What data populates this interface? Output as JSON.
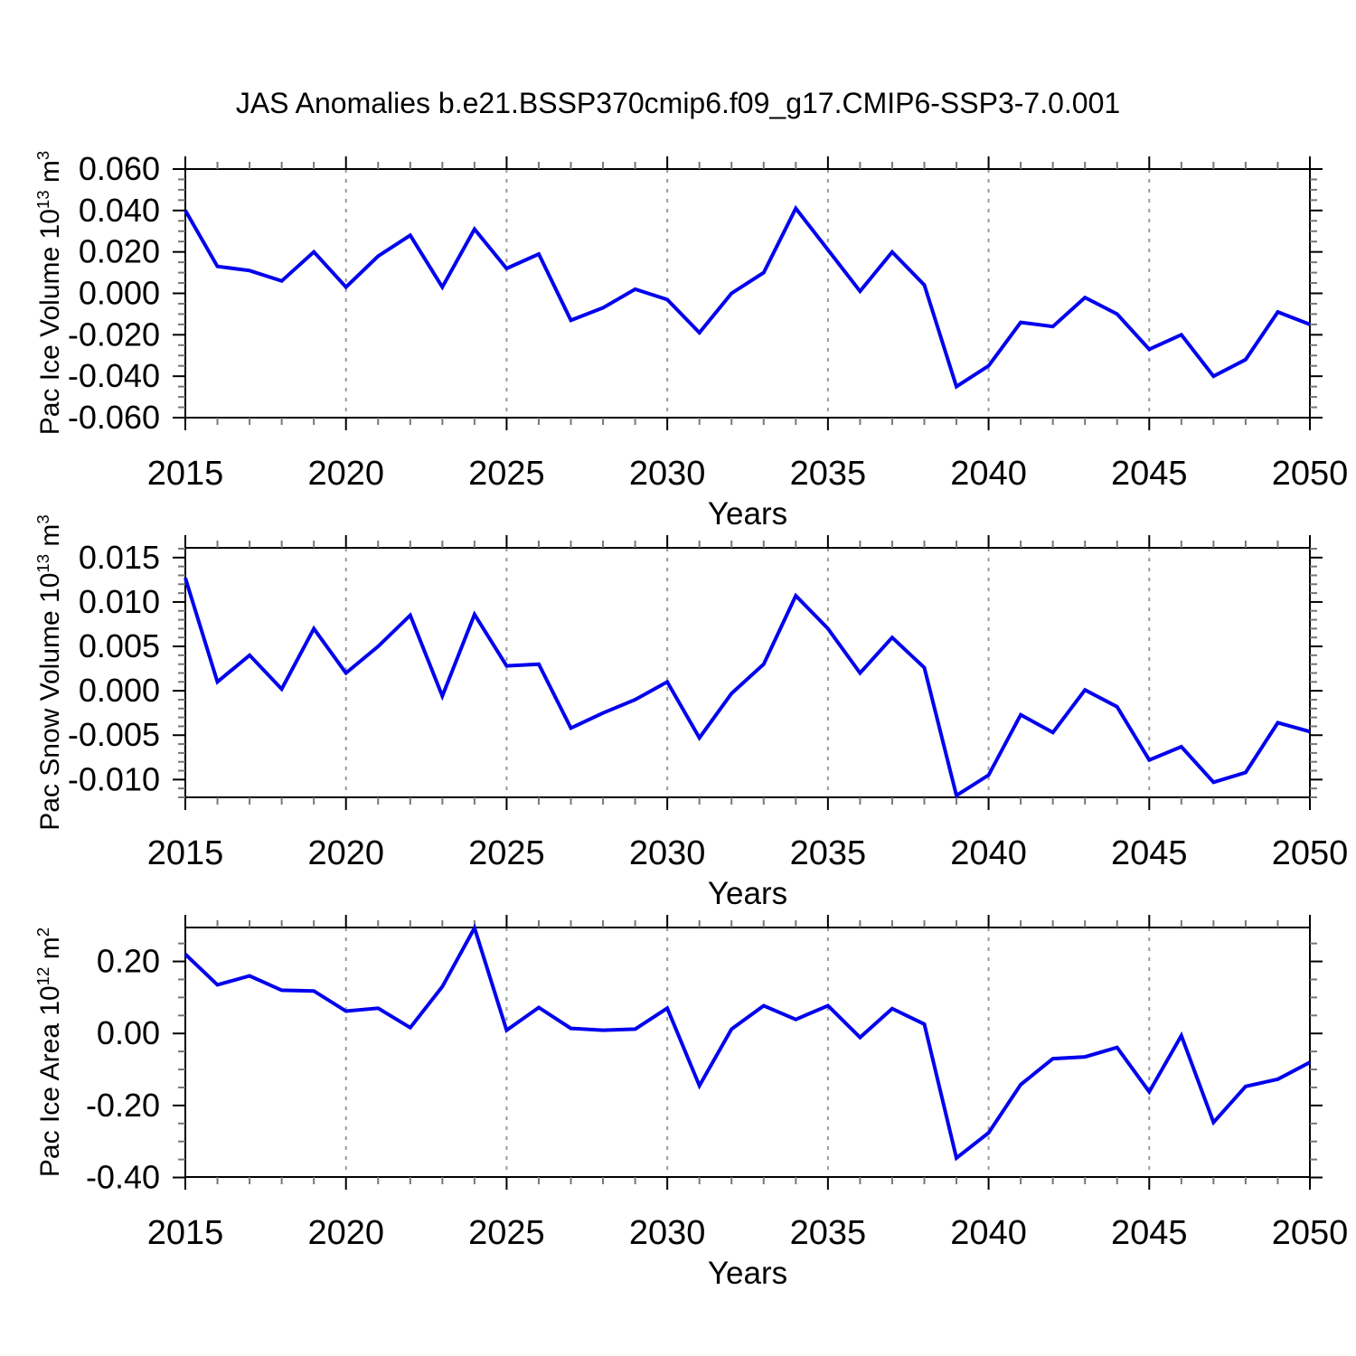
{
  "title": "JAS Anomalies b.e21.BSSP370cmip6.f09_g17.CMIP6-SSP3-7.0.001",
  "line_color": "#0000EE",
  "grid_color": "#999999",
  "axis_color": "#000000",
  "minor_tick_color": "#777777",
  "chart_data": [
    {
      "type": "line",
      "ylabel": "Pac Ice Volume 10^13 m^3",
      "ylabel_parts": {
        "prefix": "Pac Ice Volume 10",
        "power": "13",
        "unit": " m",
        "unit_power": "3"
      },
      "xlabel": "Years",
      "x": [
        2015,
        2016,
        2017,
        2018,
        2019,
        2020,
        2021,
        2022,
        2023,
        2024,
        2025,
        2026,
        2027,
        2028,
        2029,
        2030,
        2031,
        2032,
        2033,
        2034,
        2035,
        2036,
        2037,
        2038,
        2039,
        2040,
        2041,
        2042,
        2043,
        2044,
        2045,
        2046,
        2047,
        2048,
        2049,
        2050
      ],
      "values": [
        0.04,
        0.013,
        0.011,
        0.006,
        0.02,
        0.003,
        0.018,
        0.028,
        0.003,
        0.031,
        0.012,
        0.019,
        -0.013,
        -0.007,
        0.002,
        -0.003,
        -0.019,
        0.0,
        0.01,
        0.041,
        0.021,
        0.001,
        0.02,
        0.004,
        -0.045,
        -0.035,
        -0.014,
        -0.016,
        -0.002,
        -0.01,
        -0.027,
        -0.02,
        -0.04,
        -0.032,
        -0.009,
        -0.015
      ],
      "ylim": [
        -0.06,
        0.06
      ],
      "yticks": [
        0.06,
        0.04,
        0.02,
        0.0,
        -0.02,
        -0.04,
        -0.06
      ],
      "ytick_labels": [
        "0.060",
        "0.040",
        "0.020",
        "0.000",
        "-0.020",
        "-0.040",
        "-0.060"
      ],
      "minor_y_step": 0.005,
      "xlim": [
        2015,
        2050
      ],
      "xticks": [
        2015,
        2020,
        2025,
        2030,
        2035,
        2040,
        2045,
        2050
      ],
      "xtick_labels": [
        "2015",
        "2020",
        "2025",
        "2030",
        "2035",
        "2040",
        "2045",
        "2050"
      ],
      "minor_x_step": 1,
      "grid_x": [
        2020,
        2025,
        2030,
        2035,
        2040,
        2045
      ],
      "grid": "vertical-dashed",
      "legend": "none"
    },
    {
      "type": "line",
      "ylabel": "Pac Snow Volume 10^13 m^3",
      "ylabel_parts": {
        "prefix": "Pac Snow Volume 10",
        "power": "13",
        "unit": " m",
        "unit_power": "3"
      },
      "xlabel": "Years",
      "x": [
        2015,
        2016,
        2017,
        2018,
        2019,
        2020,
        2021,
        2022,
        2023,
        2024,
        2025,
        2026,
        2027,
        2028,
        2029,
        2030,
        2031,
        2032,
        2033,
        2034,
        2035,
        2036,
        2037,
        2038,
        2039,
        2040,
        2041,
        2042,
        2043,
        2044,
        2045,
        2046,
        2047,
        2048,
        2049,
        2050
      ],
      "values": [
        0.0127,
        0.001,
        0.004,
        0.0002,
        0.007,
        0.002,
        0.005,
        0.0085,
        -0.0006,
        0.0086,
        0.0028,
        0.003,
        -0.0042,
        -0.0025,
        -0.001,
        0.001,
        -0.0053,
        -0.0003,
        0.003,
        0.0107,
        0.007,
        0.002,
        0.006,
        0.0026,
        -0.0118,
        -0.0095,
        -0.0027,
        -0.0047,
        0.0001,
        -0.0018,
        -0.0078,
        -0.0063,
        -0.0103,
        -0.0092,
        -0.0036,
        -0.0046
      ],
      "ylim": [
        -0.012,
        0.0161
      ],
      "yticks": [
        0.015,
        0.01,
        0.005,
        0.0,
        -0.005,
        -0.01
      ],
      "ytick_labels": [
        "0.015",
        "0.010",
        "0.005",
        "0.000",
        "-0.005",
        "-0.010"
      ],
      "minor_y_step": 0.001,
      "xlim": [
        2015,
        2050
      ],
      "xticks": [
        2015,
        2020,
        2025,
        2030,
        2035,
        2040,
        2045,
        2050
      ],
      "xtick_labels": [
        "2015",
        "2020",
        "2025",
        "2030",
        "2035",
        "2040",
        "2045",
        "2050"
      ],
      "minor_x_step": 1,
      "grid_x": [
        2020,
        2025,
        2030,
        2035,
        2040,
        2045
      ],
      "grid": "vertical-dashed",
      "legend": "none"
    },
    {
      "type": "line",
      "ylabel": "Pac Ice Area 10^12 m^2",
      "ylabel_parts": {
        "prefix": "Pac Ice Area 10",
        "power": "12",
        "unit": " m",
        "unit_power": "2"
      },
      "xlabel": "Years",
      "x": [
        2015,
        2016,
        2017,
        2018,
        2019,
        2020,
        2021,
        2022,
        2023,
        2024,
        2025,
        2026,
        2027,
        2028,
        2029,
        2030,
        2031,
        2032,
        2033,
        2034,
        2035,
        2036,
        2037,
        2038,
        2039,
        2040,
        2041,
        2042,
        2043,
        2044,
        2045,
        2046,
        2047,
        2048,
        2049,
        2050
      ],
      "values": [
        0.22,
        0.135,
        0.16,
        0.12,
        0.118,
        0.062,
        0.07,
        0.016,
        0.13,
        0.293,
        0.009,
        0.072,
        0.014,
        0.009,
        0.012,
        0.07,
        -0.145,
        0.012,
        0.077,
        0.039,
        0.077,
        -0.011,
        0.069,
        0.026,
        -0.346,
        -0.276,
        -0.142,
        -0.07,
        -0.065,
        -0.039,
        -0.162,
        -0.006,
        -0.247,
        -0.147,
        -0.127,
        -0.08
      ],
      "ylim": [
        -0.3987,
        0.2943
      ],
      "yticks": [
        0.2,
        0.0,
        -0.2,
        -0.4
      ],
      "ytick_labels": [
        "0.20",
        "0.00",
        "-0.20",
        "-0.40"
      ],
      "minor_y_step": 0.05,
      "xlim": [
        2015,
        2050
      ],
      "xticks": [
        2015,
        2020,
        2025,
        2030,
        2035,
        2040,
        2045,
        2050
      ],
      "xtick_labels": [
        "2015",
        "2020",
        "2025",
        "2030",
        "2035",
        "2040",
        "2045",
        "2050"
      ],
      "minor_x_step": 1,
      "grid_x": [
        2020,
        2025,
        2030,
        2035,
        2040,
        2045
      ],
      "grid": "vertical-dashed",
      "legend": "none"
    }
  ]
}
